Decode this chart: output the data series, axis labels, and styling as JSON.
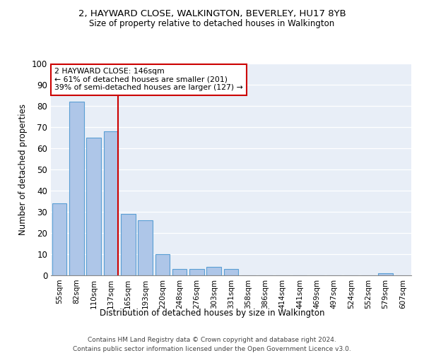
{
  "title1": "2, HAYWARD CLOSE, WALKINGTON, BEVERLEY, HU17 8YB",
  "title2": "Size of property relative to detached houses in Walkington",
  "xlabel": "Distribution of detached houses by size in Walkington",
  "ylabel": "Number of detached properties",
  "categories": [
    "55sqm",
    "82sqm",
    "110sqm",
    "137sqm",
    "165sqm",
    "193sqm",
    "220sqm",
    "248sqm",
    "276sqm",
    "303sqm",
    "331sqm",
    "358sqm",
    "386sqm",
    "414sqm",
    "441sqm",
    "469sqm",
    "497sqm",
    "524sqm",
    "552sqm",
    "579sqm",
    "607sqm"
  ],
  "values": [
    34,
    82,
    65,
    68,
    29,
    26,
    10,
    3,
    3,
    4,
    3,
    0,
    0,
    0,
    0,
    0,
    0,
    0,
    0,
    1,
    0
  ],
  "bar_color": "#aec6e8",
  "bar_edgecolor": "#5a9fd4",
  "vline_color": "#cc0000",
  "annotation_box_edgecolor": "#cc0000",
  "annotation_box_facecolor": "#ffffff",
  "property_line_label": "2 HAYWARD CLOSE: 146sqm",
  "annotation_line1": "← 61% of detached houses are smaller (201)",
  "annotation_line2": "39% of semi-detached houses are larger (127) →",
  "ylim": [
    0,
    100
  ],
  "yticks": [
    0,
    10,
    20,
    30,
    40,
    50,
    60,
    70,
    80,
    90,
    100
  ],
  "background_color": "#e8eef7",
  "footer1": "Contains HM Land Registry data © Crown copyright and database right 2024.",
  "footer2": "Contains public sector information licensed under the Open Government Licence v3.0."
}
